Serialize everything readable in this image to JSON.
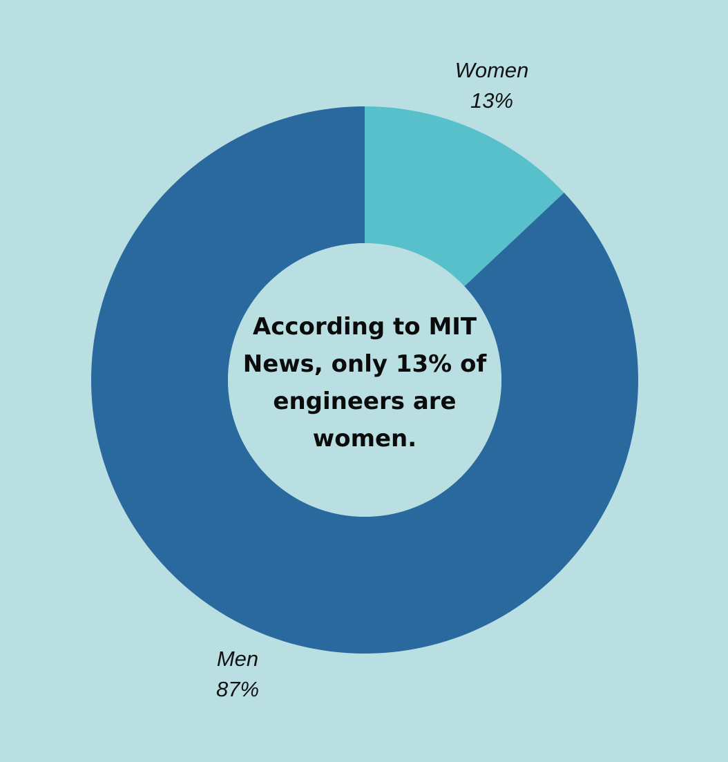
{
  "chart_data": {
    "type": "pie",
    "donut": true,
    "categories": [
      "Women",
      "Men"
    ],
    "values": [
      13,
      87
    ],
    "labels": [
      "13%",
      "87%"
    ],
    "colors": [
      "#57c0cb",
      "#2a699d"
    ],
    "background": "#b9dfe3",
    "center_text": "According to MIT News, only 13% of engineers are women."
  }
}
